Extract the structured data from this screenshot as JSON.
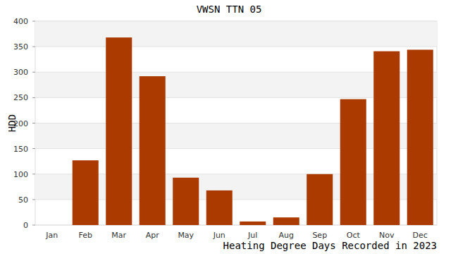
{
  "chart_data": {
    "type": "bar",
    "title": "VWSN TTN 05",
    "x_label": "Heating Degree Days Recorded in 2023",
    "y_label": "HDD",
    "categories": [
      "Jan",
      "Feb",
      "Mar",
      "Apr",
      "May",
      "Jun",
      "Jul",
      "Aug",
      "Sep",
      "Oct",
      "Nov",
      "Dec"
    ],
    "values": [
      0,
      127,
      368,
      292,
      93,
      68,
      7,
      15,
      100,
      247,
      341,
      344
    ],
    "color": "#aa3a00",
    "ylim": [
      0,
      400
    ],
    "yticks": [
      0,
      50,
      100,
      150,
      200,
      250,
      300,
      350,
      400
    ],
    "grid": true
  }
}
